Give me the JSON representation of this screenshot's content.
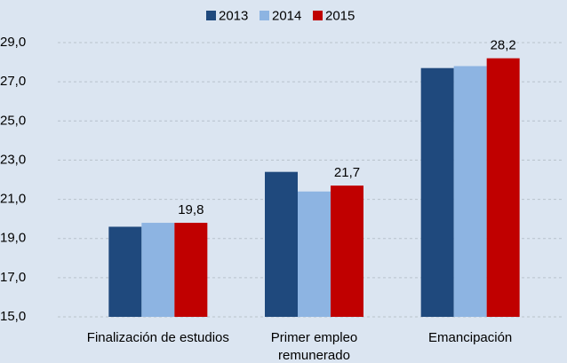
{
  "chart_data": {
    "type": "bar",
    "categories": [
      "Finalización de estudios",
      "Primer empleo remunerado",
      "Emancipación"
    ],
    "series": [
      {
        "name": "2013",
        "color": "#1f497d",
        "values": [
          19.6,
          22.4,
          27.7
        ]
      },
      {
        "name": "2014",
        "color": "#8db4e2",
        "values": [
          19.8,
          21.4,
          27.8
        ]
      },
      {
        "name": "2015",
        "color": "#c00000",
        "values": [
          19.8,
          21.7,
          28.2
        ],
        "value_labels": [
          "19,8",
          "21,7",
          "28,2"
        ]
      }
    ],
    "ylim": [
      15,
      29
    ],
    "yticks": [
      {
        "value": 15,
        "label": "15,0"
      },
      {
        "value": 17,
        "label": "17,0"
      },
      {
        "value": 19,
        "label": "19,0"
      },
      {
        "value": 21,
        "label": "21,0"
      },
      {
        "value": 23,
        "label": "23,0"
      },
      {
        "value": 25,
        "label": "25,0"
      },
      {
        "value": 27,
        "label": "27,0"
      },
      {
        "value": 29,
        "label": "29,0"
      }
    ],
    "grid": true,
    "legend": "top"
  }
}
